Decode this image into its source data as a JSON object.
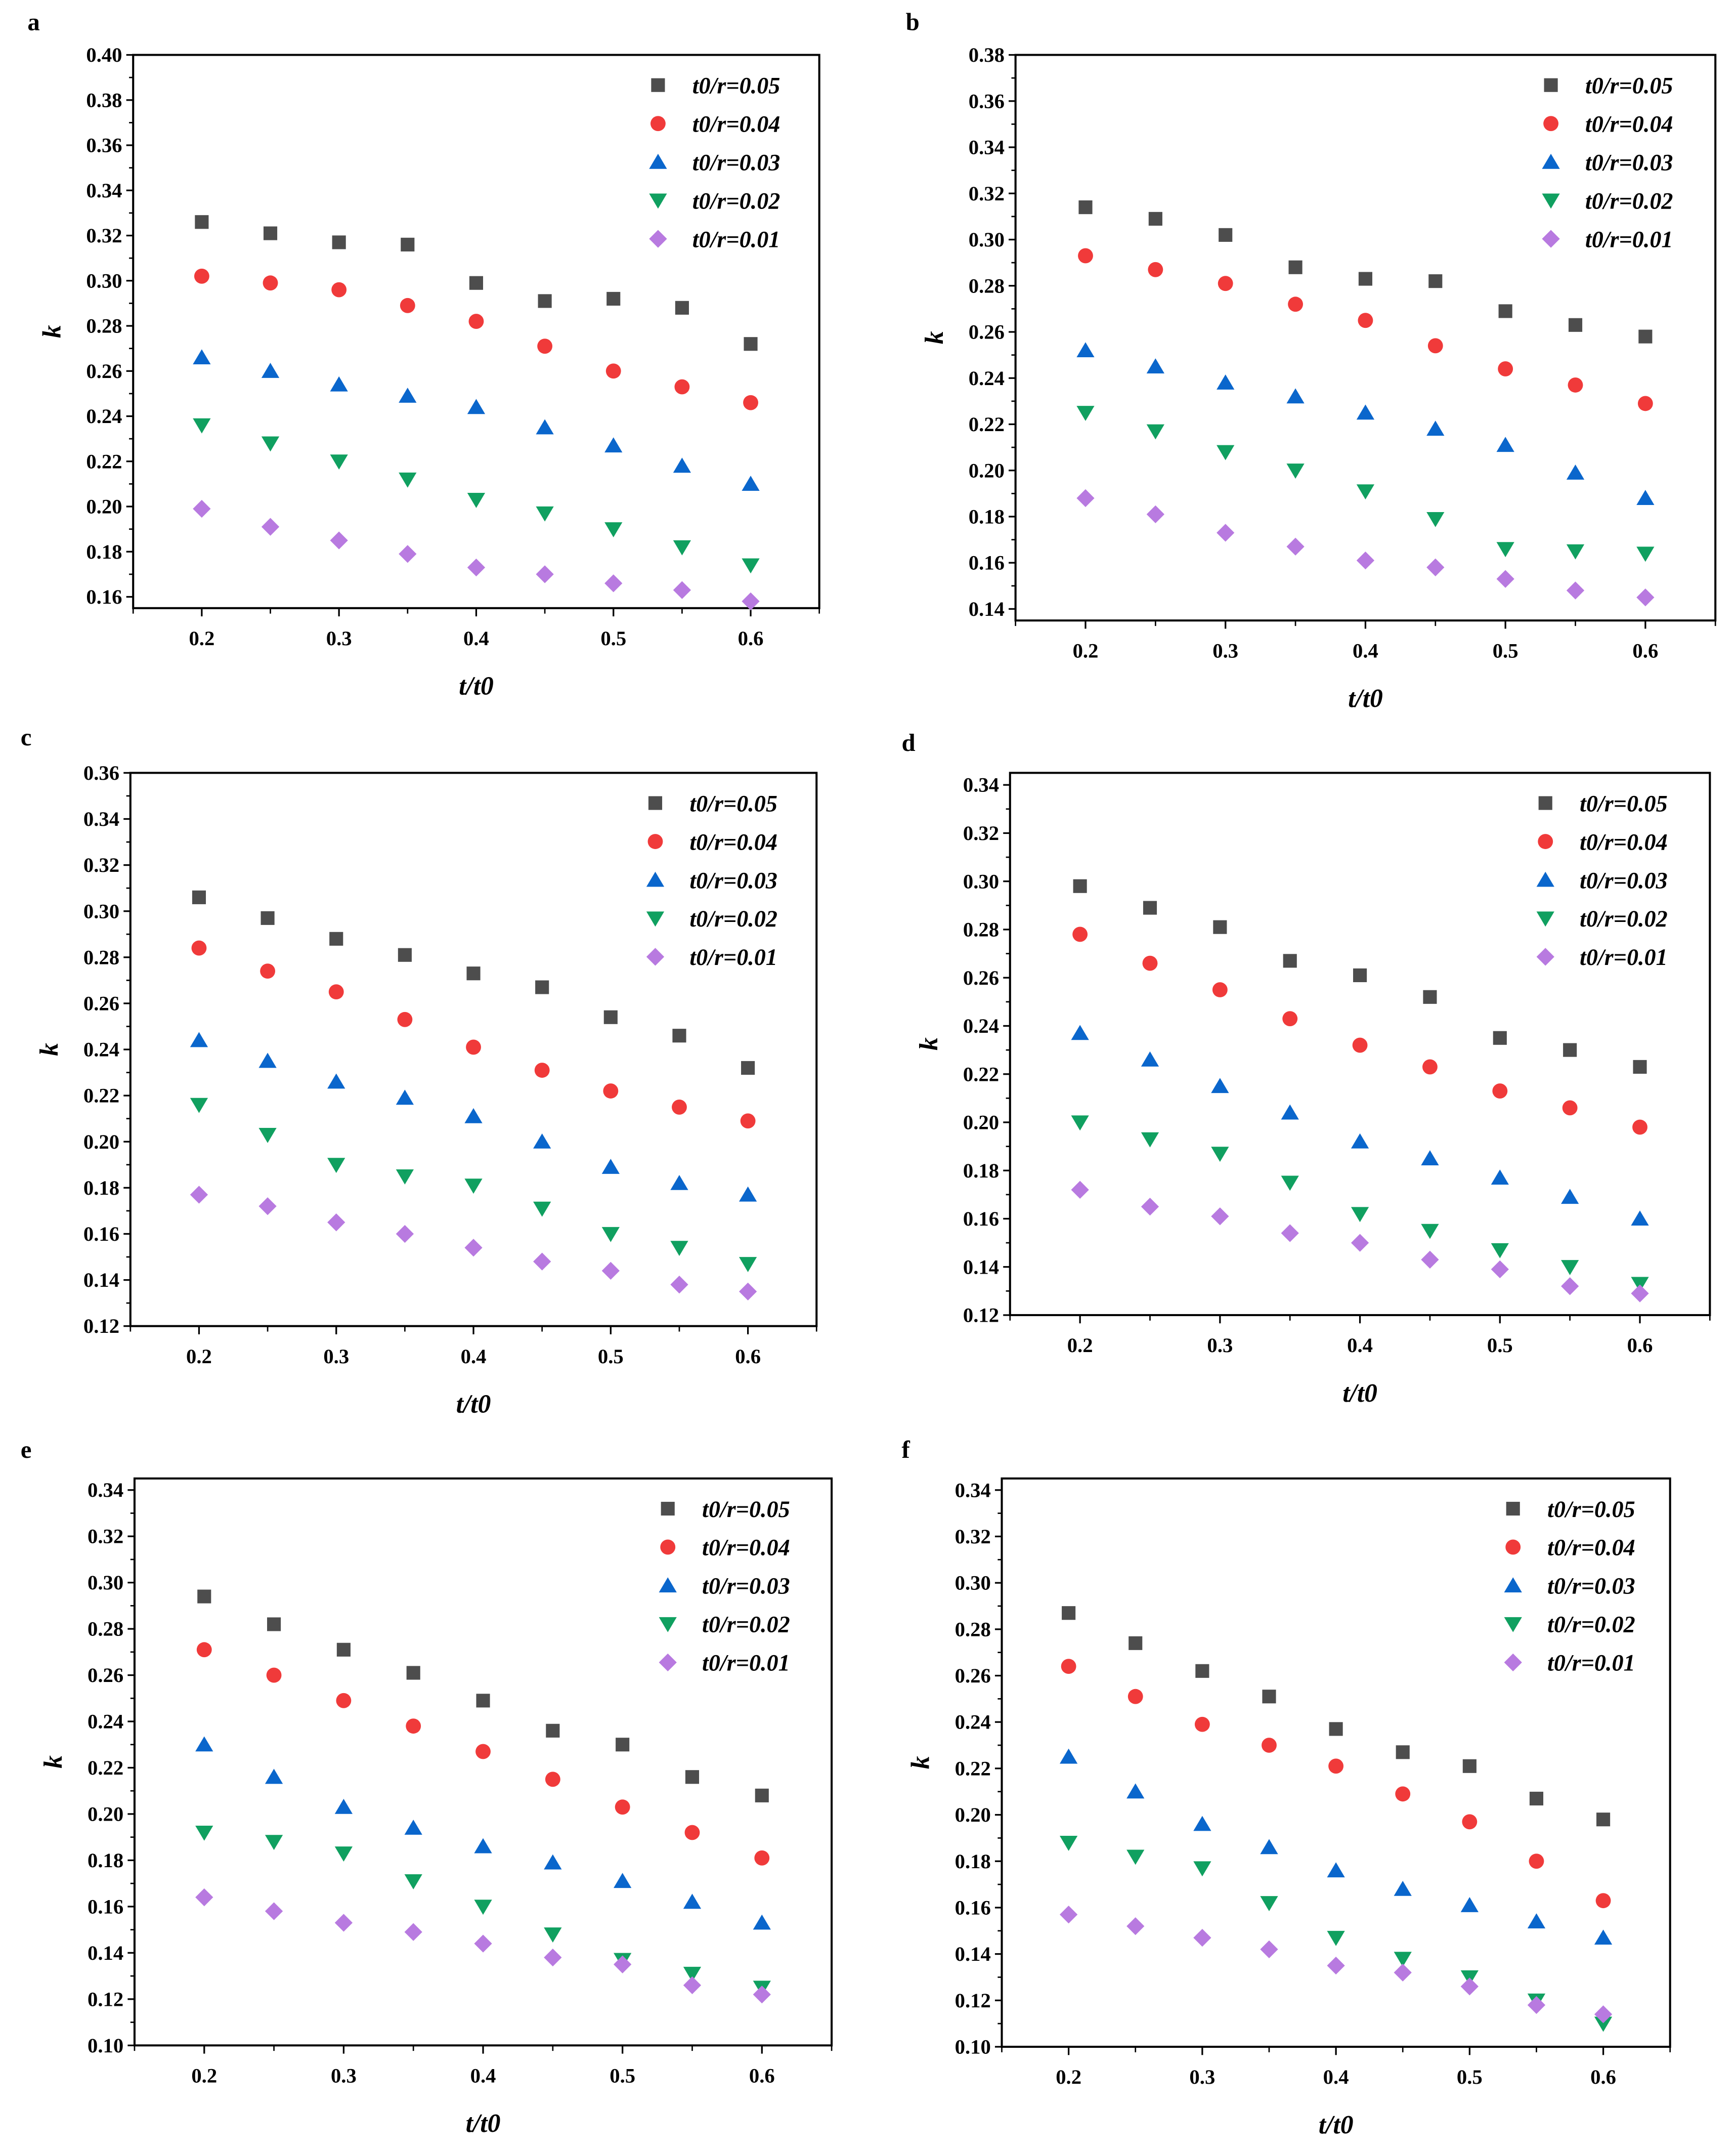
{
  "chart_data": [
    {
      "type": "scatter",
      "panel_label": "a",
      "xlabel": "t/t0",
      "ylabel": "k",
      "xlim": [
        0.15,
        0.65
      ],
      "ylim": [
        0.155,
        0.4
      ],
      "xticks": [
        "0.2",
        "0.3",
        "0.4",
        "0.5",
        "0.6"
      ],
      "yticks": [
        "0.16",
        "0.18",
        "0.20",
        "0.22",
        "0.24",
        "0.26",
        "0.28",
        "0.30",
        "0.32",
        "0.34",
        "0.36",
        "0.38",
        "0.40"
      ],
      "legend_position": "top-right",
      "x": [
        0.2,
        0.25,
        0.3,
        0.35,
        0.4,
        0.45,
        0.5,
        0.55,
        0.6
      ],
      "series": [
        {
          "name": "t0/r=0.05",
          "values": [
            0.326,
            0.321,
            0.317,
            0.316,
            0.299,
            0.291,
            0.292,
            0.288,
            0.272
          ]
        },
        {
          "name": "t0/r=0.04",
          "values": [
            0.302,
            0.299,
            0.296,
            0.289,
            0.282,
            0.271,
            0.26,
            0.253,
            0.246
          ]
        },
        {
          "name": "t0/r=0.03",
          "values": [
            0.266,
            0.26,
            0.254,
            0.249,
            0.244,
            0.235,
            0.227,
            0.218,
            0.21
          ]
        },
        {
          "name": "t0/r=0.02",
          "values": [
            0.236,
            0.228,
            0.22,
            0.212,
            0.203,
            0.197,
            0.19,
            0.182,
            0.174
          ]
        },
        {
          "name": "t0/r=0.01",
          "values": [
            0.199,
            0.191,
            0.185,
            0.179,
            0.173,
            0.17,
            0.166,
            0.163,
            0.158
          ]
        }
      ]
    },
    {
      "type": "scatter",
      "panel_label": "b",
      "xlabel": "t/t0",
      "ylabel": "k",
      "xlim": [
        0.15,
        0.65
      ],
      "ylim": [
        0.135,
        0.38
      ],
      "xticks": [
        "0.2",
        "0.3",
        "0.4",
        "0.5",
        "0.6"
      ],
      "yticks": [
        "0.14",
        "0.16",
        "0.18",
        "0.20",
        "0.22",
        "0.24",
        "0.26",
        "0.28",
        "0.30",
        "0.32",
        "0.34",
        "0.36",
        "0.38"
      ],
      "legend_position": "top-right",
      "x": [
        0.2,
        0.25,
        0.3,
        0.35,
        0.4,
        0.45,
        0.5,
        0.55,
        0.6
      ],
      "series": [
        {
          "name": "t0/r=0.05",
          "values": [
            0.314,
            0.309,
            0.302,
            0.288,
            0.283,
            0.282,
            0.269,
            0.263,
            0.258
          ]
        },
        {
          "name": "t0/r=0.04",
          "values": [
            0.293,
            0.287,
            0.281,
            0.272,
            0.265,
            0.254,
            0.244,
            0.237,
            0.229
          ]
        },
        {
          "name": "t0/r=0.03",
          "values": [
            0.252,
            0.245,
            0.238,
            0.232,
            0.225,
            0.218,
            0.211,
            0.199,
            0.188
          ]
        },
        {
          "name": "t0/r=0.02",
          "values": [
            0.225,
            0.217,
            0.208,
            0.2,
            0.191,
            0.179,
            0.166,
            0.165,
            0.164
          ]
        },
        {
          "name": "t0/r=0.01",
          "values": [
            0.188,
            0.181,
            0.173,
            0.167,
            0.161,
            0.158,
            0.153,
            0.148,
            0.145
          ]
        }
      ]
    },
    {
      "type": "scatter",
      "panel_label": "c",
      "xlabel": "t/t0",
      "ylabel": "k",
      "xlim": [
        0.15,
        0.65
      ],
      "ylim": [
        0.12,
        0.36
      ],
      "xticks": [
        "0.2",
        "0.3",
        "0.4",
        "0.5",
        "0.6"
      ],
      "yticks": [
        "0.12",
        "0.14",
        "0.16",
        "0.18",
        "0.20",
        "0.22",
        "0.24",
        "0.26",
        "0.28",
        "0.30",
        "0.32",
        "0.34",
        "0.36"
      ],
      "legend_position": "top-right",
      "x": [
        0.2,
        0.25,
        0.3,
        0.35,
        0.4,
        0.45,
        0.5,
        0.55,
        0.6
      ],
      "series": [
        {
          "name": "t0/r=0.05",
          "values": [
            0.306,
            0.297,
            0.288,
            0.281,
            0.273,
            0.267,
            0.254,
            0.246,
            0.232
          ]
        },
        {
          "name": "t0/r=0.04",
          "values": [
            0.284,
            0.274,
            0.265,
            0.253,
            0.241,
            0.231,
            0.222,
            0.215,
            0.209
          ]
        },
        {
          "name": "t0/r=0.03",
          "values": [
            0.244,
            0.235,
            0.226,
            0.219,
            0.211,
            0.2,
            0.189,
            0.182,
            0.177
          ]
        },
        {
          "name": "t0/r=0.02",
          "values": [
            0.216,
            0.203,
            0.19,
            0.185,
            0.181,
            0.171,
            0.16,
            0.154,
            0.147
          ]
        },
        {
          "name": "t0/r=0.01",
          "values": [
            0.177,
            0.172,
            0.165,
            0.16,
            0.154,
            0.148,
            0.144,
            0.138,
            0.135
          ]
        }
      ]
    },
    {
      "type": "scatter",
      "panel_label": "d",
      "xlabel": "t/t0",
      "ylabel": "k",
      "xlim": [
        0.15,
        0.65
      ],
      "ylim": [
        0.12,
        0.345
      ],
      "xticks": [
        "0.2",
        "0.3",
        "0.4",
        "0.5",
        "0.6"
      ],
      "yticks": [
        "0.12",
        "0.14",
        "0.16",
        "0.18",
        "0.20",
        "0.22",
        "0.24",
        "0.26",
        "0.28",
        "0.30",
        "0.32",
        "0.34"
      ],
      "legend_position": "top-right",
      "x": [
        0.2,
        0.25,
        0.3,
        0.35,
        0.4,
        0.45,
        0.5,
        0.55,
        0.6
      ],
      "series": [
        {
          "name": "t0/r=0.05",
          "values": [
            0.298,
            0.289,
            0.281,
            0.267,
            0.261,
            0.252,
            0.235,
            0.23,
            0.223
          ]
        },
        {
          "name": "t0/r=0.04",
          "values": [
            0.278,
            0.266,
            0.255,
            0.243,
            0.232,
            0.223,
            0.213,
            0.206,
            0.198
          ]
        },
        {
          "name": "t0/r=0.03",
          "values": [
            0.237,
            0.226,
            0.215,
            0.204,
            0.192,
            0.185,
            0.177,
            0.169,
            0.16
          ]
        },
        {
          "name": "t0/r=0.02",
          "values": [
            0.2,
            0.193,
            0.187,
            0.175,
            0.162,
            0.155,
            0.147,
            0.14,
            0.133
          ]
        },
        {
          "name": "t0/r=0.01",
          "values": [
            0.172,
            0.165,
            0.161,
            0.154,
            0.15,
            0.143,
            0.139,
            0.132,
            0.129
          ]
        }
      ]
    },
    {
      "type": "scatter",
      "panel_label": "e",
      "xlabel": "t/t0",
      "ylabel": "k",
      "xlim": [
        0.15,
        0.65
      ],
      "ylim": [
        0.1,
        0.345
      ],
      "xticks": [
        "0.2",
        "0.3",
        "0.4",
        "0.5",
        "0.6"
      ],
      "yticks": [
        "0.10",
        "0.12",
        "0.14",
        "0.16",
        "0.18",
        "0.20",
        "0.22",
        "0.24",
        "0.26",
        "0.28",
        "0.30",
        "0.32",
        "0.34"
      ],
      "legend_position": "top-right",
      "x": [
        0.2,
        0.25,
        0.3,
        0.35,
        0.4,
        0.45,
        0.5,
        0.55,
        0.6
      ],
      "series": [
        {
          "name": "t0/r=0.05",
          "values": [
            0.294,
            0.282,
            0.271,
            0.261,
            0.249,
            0.236,
            0.23,
            0.216,
            0.208
          ]
        },
        {
          "name": "t0/r=0.04",
          "values": [
            0.271,
            0.26,
            0.249,
            0.238,
            0.227,
            0.215,
            0.203,
            0.192,
            0.181
          ]
        },
        {
          "name": "t0/r=0.03",
          "values": [
            0.23,
            0.216,
            0.203,
            0.194,
            0.186,
            0.179,
            0.171,
            0.162,
            0.153
          ]
        },
        {
          "name": "t0/r=0.02",
          "values": [
            0.192,
            0.188,
            0.183,
            0.171,
            0.16,
            0.148,
            0.137,
            0.131,
            0.125
          ]
        },
        {
          "name": "t0/r=0.01",
          "values": [
            0.164,
            0.158,
            0.153,
            0.149,
            0.144,
            0.138,
            0.135,
            0.126,
            0.122
          ]
        }
      ]
    },
    {
      "type": "scatter",
      "panel_label": "f",
      "xlabel": "t/t0",
      "ylabel": "k",
      "xlim": [
        0.15,
        0.65
      ],
      "ylim": [
        0.1,
        0.345
      ],
      "xticks": [
        "0.2",
        "0.3",
        "0.4",
        "0.5",
        "0.6"
      ],
      "yticks": [
        "0.10",
        "0.12",
        "0.14",
        "0.16",
        "0.18",
        "0.20",
        "0.22",
        "0.24",
        "0.26",
        "0.28",
        "0.30",
        "0.32",
        "0.34"
      ],
      "legend_position": "top-right",
      "x": [
        0.2,
        0.25,
        0.3,
        0.35,
        0.4,
        0.45,
        0.5,
        0.55,
        0.6
      ],
      "series": [
        {
          "name": "t0/r=0.05",
          "values": [
            0.287,
            0.274,
            0.262,
            0.251,
            0.237,
            0.227,
            0.221,
            0.207,
            0.198
          ]
        },
        {
          "name": "t0/r=0.04",
          "values": [
            0.264,
            0.251,
            0.239,
            0.23,
            0.221,
            0.209,
            0.197,
            0.18,
            0.163
          ]
        },
        {
          "name": "t0/r=0.03",
          "values": [
            0.225,
            0.21,
            0.196,
            0.186,
            0.176,
            0.168,
            0.161,
            0.154,
            0.147
          ]
        },
        {
          "name": "t0/r=0.02",
          "values": [
            0.188,
            0.182,
            0.177,
            0.162,
            0.147,
            0.138,
            0.13,
            0.12,
            0.11
          ]
        },
        {
          "name": "t0/r=0.01",
          "values": [
            0.157,
            0.152,
            0.147,
            0.142,
            0.135,
            0.132,
            0.126,
            0.118,
            0.114
          ]
        }
      ]
    }
  ],
  "colors": {
    "series": [
      "#4d4d4d",
      "#f03a3a",
      "#0a66cc",
      "#10a060",
      "#b87ae0"
    ],
    "axis": "#000000"
  },
  "markers": [
    "square",
    "circle",
    "triangle-up",
    "triangle-down",
    "diamond"
  ]
}
